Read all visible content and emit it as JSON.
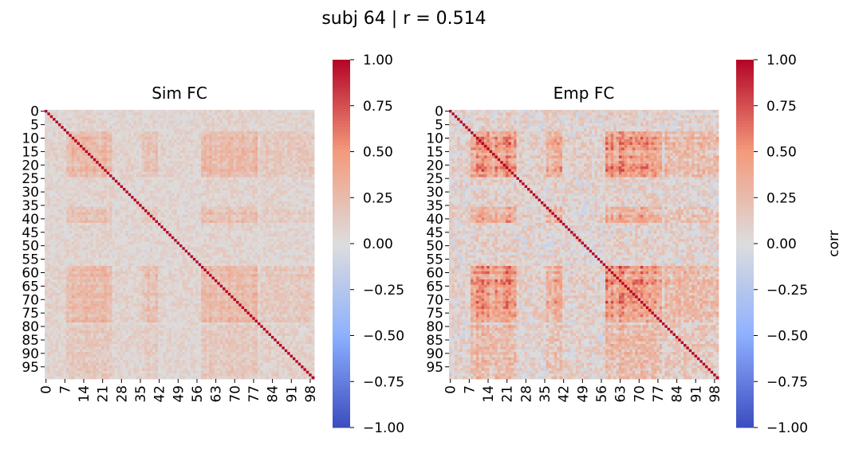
{
  "suptitle": "subj 64 | r = 0.514",
  "chart_data": [
    {
      "type": "heatmap",
      "title": "Sim FC",
      "n": 100,
      "x_ticks": [
        0,
        7,
        14,
        21,
        28,
        35,
        42,
        49,
        56,
        63,
        70,
        77,
        84,
        91,
        98
      ],
      "y_ticks": [
        0,
        5,
        10,
        15,
        20,
        25,
        30,
        35,
        40,
        45,
        50,
        55,
        60,
        65,
        70,
        75,
        80,
        85,
        90,
        95
      ],
      "diagonal": 1.0,
      "colormap": "coolwarm",
      "colorbar": {
        "range": [
          -1.0,
          1.0
        ],
        "ticks": [
          "1.00",
          "0.75",
          "0.50",
          "0.25",
          "0.00",
          "−0.25",
          "−0.50",
          "−0.75",
          "−1.00"
        ],
        "label": ""
      }
    },
    {
      "type": "heatmap",
      "title": "Emp FC",
      "n": 100,
      "x_ticks": [
        0,
        7,
        14,
        21,
        28,
        35,
        42,
        49,
        56,
        63,
        70,
        77,
        84,
        91,
        98
      ],
      "y_ticks": [
        0,
        5,
        10,
        15,
        20,
        25,
        30,
        35,
        40,
        45,
        50,
        55,
        60,
        65,
        70,
        75,
        80,
        85,
        90,
        95
      ],
      "diagonal": 1.0,
      "colormap": "coolwarm",
      "colorbar": {
        "range": [
          -1.0,
          1.0
        ],
        "ticks": [
          "1.00",
          "0.75",
          "0.50",
          "0.25",
          "0.00",
          "−0.25",
          "−0.50",
          "−0.75",
          "−1.00"
        ],
        "label": "corr"
      }
    }
  ]
}
